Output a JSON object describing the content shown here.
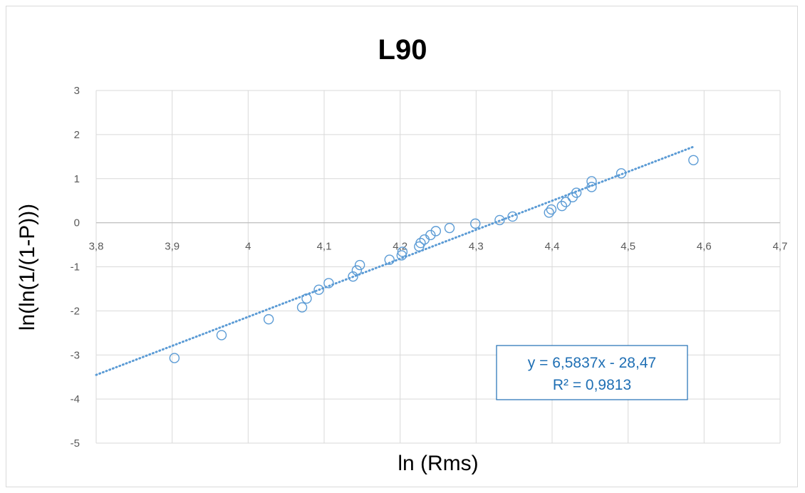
{
  "chart_data": {
    "type": "scatter",
    "title": "L90",
    "xlabel": "ln (Rms)",
    "ylabel": "ln(ln(1/(1-P)))",
    "xlim": [
      3.8,
      4.7
    ],
    "ylim": [
      -5,
      3
    ],
    "x_ticks": [
      "3,8",
      "3,9",
      "4",
      "4,1",
      "4,2",
      "4,3",
      "4,4",
      "4,5",
      "4,6",
      "4,7"
    ],
    "y_ticks": [
      "3",
      "2",
      "1",
      "0",
      "-1",
      "-2",
      "-3",
      "-4",
      "-5"
    ],
    "grid": true,
    "marker_color": "#5b9bd5",
    "trendline": {
      "type": "linear",
      "slope": 6.5837,
      "intercept": -28.47,
      "x_range": [
        3.8,
        4.585
      ],
      "color": "#5b9bd5",
      "style": "dotted"
    },
    "equation_label": {
      "line1": "y = 6,5837x - 28,47",
      "line2": "R² = 0,9813",
      "color": "#1f6fb4"
    },
    "points": [
      [
        3.903,
        -3.07
      ],
      [
        3.965,
        -2.55
      ],
      [
        4.027,
        -2.19
      ],
      [
        4.071,
        -1.92
      ],
      [
        4.077,
        -1.72
      ],
      [
        4.093,
        -1.52
      ],
      [
        4.106,
        -1.37
      ],
      [
        4.138,
        -1.22
      ],
      [
        4.143,
        -1.08
      ],
      [
        4.147,
        -0.96
      ],
      [
        4.186,
        -0.84
      ],
      [
        4.202,
        -0.74
      ],
      [
        4.203,
        -0.66
      ],
      [
        4.225,
        -0.54
      ],
      [
        4.227,
        -0.46
      ],
      [
        4.232,
        -0.38
      ],
      [
        4.24,
        -0.28
      ],
      [
        4.247,
        -0.19
      ],
      [
        4.265,
        -0.12
      ],
      [
        4.299,
        -0.02
      ],
      [
        4.331,
        0.06
      ],
      [
        4.348,
        0.14
      ],
      [
        4.396,
        0.23
      ],
      [
        4.399,
        0.3
      ],
      [
        4.413,
        0.38
      ],
      [
        4.418,
        0.47
      ],
      [
        4.427,
        0.58
      ],
      [
        4.432,
        0.68
      ],
      [
        4.452,
        0.81
      ],
      [
        4.452,
        0.94
      ],
      [
        4.491,
        1.12
      ],
      [
        4.586,
        1.42
      ]
    ]
  }
}
